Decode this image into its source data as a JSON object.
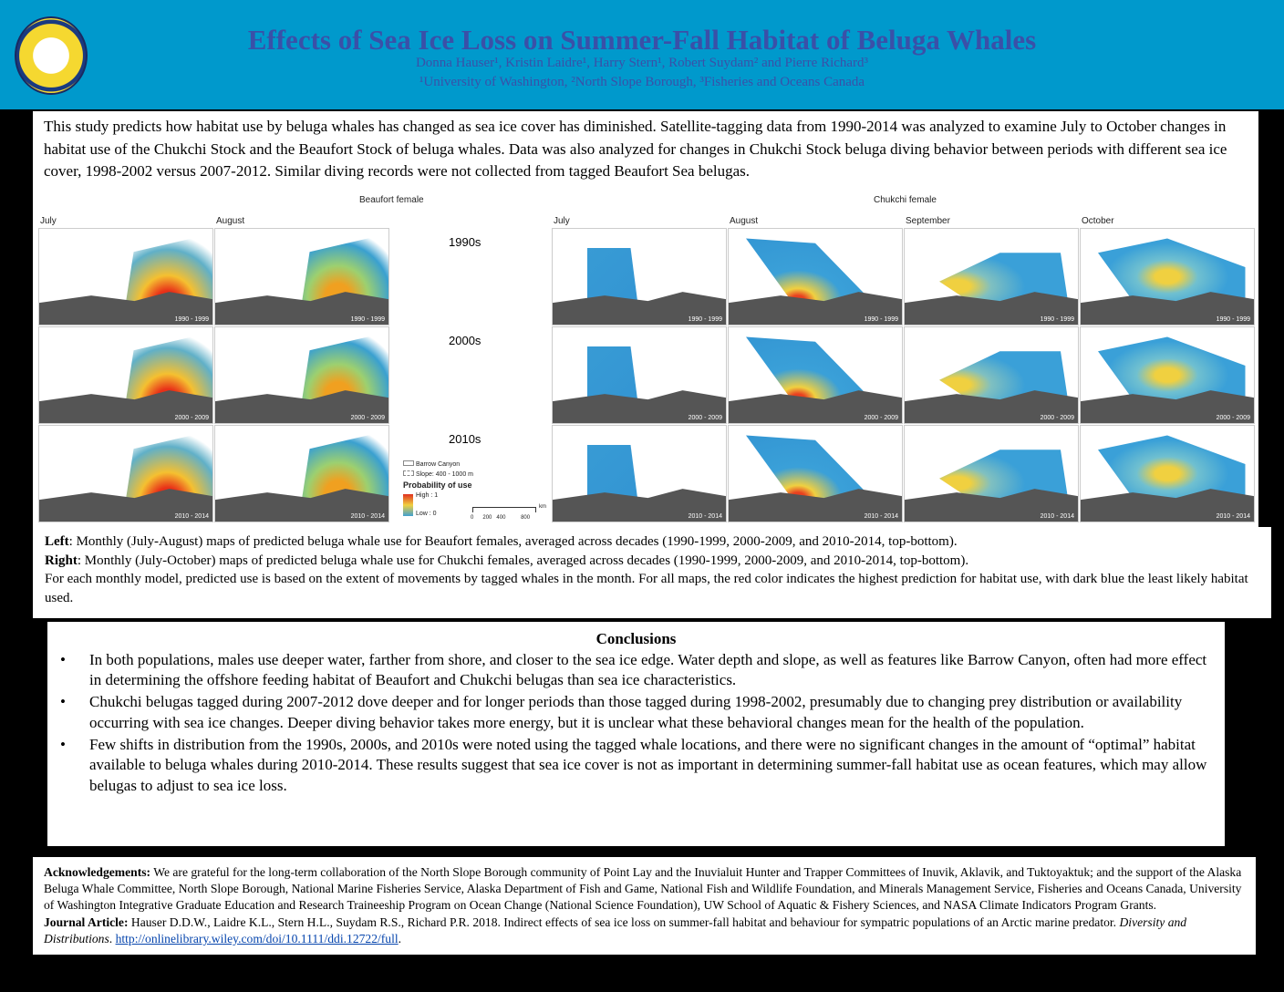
{
  "header": {
    "title": "Effects of Sea Ice Loss on Summer-Fall Habitat of Beluga Whales",
    "authors": "Donna Hauser¹, Kristin Laidre¹, Harry Stern¹, Robert Suydam² and Pierre Richard³",
    "affiliations": "¹University of Washington, ²North Slope Borough, ³Fisheries and Oceans Canada",
    "logo_text": "North Slope Borough Wildlife Management"
  },
  "intro": "This study predicts how habitat use by beluga whales has changed as sea ice cover has diminished. Satellite-tagging data from 1990-2014 was analyzed to examine July to October changes in habitat use of the Chukchi Stock and the Beaufort Stock of beluga whales. Data was also analyzed for changes in Chukchi Stock beluga diving behavior between periods with different sea ice cover, 1998-2002 versus 2007-2012. Similar diving records were not collected from tagged Beaufort Sea belugas.",
  "maps": {
    "beaufort_title": "Beaufort female",
    "chukchi_title": "Chukchi female",
    "beaufort_months": [
      "July",
      "August"
    ],
    "chukchi_months": [
      "July",
      "August",
      "September",
      "October"
    ],
    "decades": [
      "1990s",
      "2000s",
      "2010s"
    ],
    "periods": [
      "1990 - 1999",
      "2000 - 2009",
      "2010 - 2014"
    ],
    "legend": {
      "barrow": "Barrow Canyon",
      "slope": "Slope: 400 - 1000 m",
      "title": "Probability of use",
      "high": "High : 1",
      "low": "Low : 0",
      "scale": [
        "0",
        "200",
        "400",
        "800"
      ],
      "unit": "km"
    }
  },
  "caption": {
    "left_b": "Left",
    "left": ": Monthly (July-August) maps of predicted beluga whale use for Beaufort females, averaged across decades (1990-1999, 2000-2009, and 2010-2014, top-bottom).",
    "right_b": "Right",
    "right": ": Monthly (July-October) maps of predicted beluga whale use for Chukchi females, averaged across decades (1990-1999, 2000-2009, and 2010-2014, top-bottom).",
    "note": "For each monthly model, predicted use is based on the extent of movements by tagged whales in the month. For all maps, the red color indicates the highest prediction for habitat use, with dark blue the least likely habitat used."
  },
  "conclusions": {
    "title": "Conclusions",
    "items": [
      "In both populations, males use deeper water, farther from shore, and closer to the sea ice edge. Water depth and slope, as well as features like Barrow Canyon, often had more effect in determining the offshore feeding habitat of Beaufort and Chukchi belugas than sea ice characteristics.",
      "Chukchi belugas tagged during 2007-2012 dove deeper and for longer periods than those tagged during 1998-2002, presumably due to changing prey distribution or availability occurring with sea ice changes. Deeper diving behavior takes more energy, but it is unclear what these behavioral changes mean for the health of the population.",
      "Few shifts in distribution from the 1990s, 2000s, and 2010s were noted using the tagged whale locations, and there were no significant changes in the amount of “optimal” habitat available to beluga whales during 2010-2014. These results suggest that sea ice cover is not as important in determining summer-fall habitat use as ocean features, which may allow belugas to adjust to sea ice loss."
    ]
  },
  "ack": {
    "label": "Acknowledgements:",
    "text": " We are grateful for the long-term collaboration of the North Slope Borough community of Point Lay and the Inuvialuit Hunter and Trapper Committees of Inuvik, Aklavik, and Tuktoyaktuk; and the support of the Alaska Beluga Whale Committee, North Slope Borough, National Marine Fisheries Service, Alaska Department of Fish and Game, National Fish and Wildlife Foundation, and Minerals Management Service, Fisheries and Oceans Canada, University of Washington Integrative Graduate Education and Research Traineeship Program on Ocean Change (National Science Foundation), UW School of Aquatic & Fishery Sciences, and NASA Climate Indicators Program Grants.",
    "journal_label": "Journal Article:",
    "journal": " Hauser D.D.W., Laidre K.L., Stern H.L., Suydam R.S., Richard P.R. 2018. Indirect effects of sea ice loss on summer-fall habitat and behaviour for sympatric populations of an Arctic marine predator. ",
    "journal_name": "Diversity and Distributions",
    "sep": ". ",
    "link": "http://onlinelibrary.wiley.com/doi/10.1111/ddi.12722/full",
    "end": "."
  }
}
